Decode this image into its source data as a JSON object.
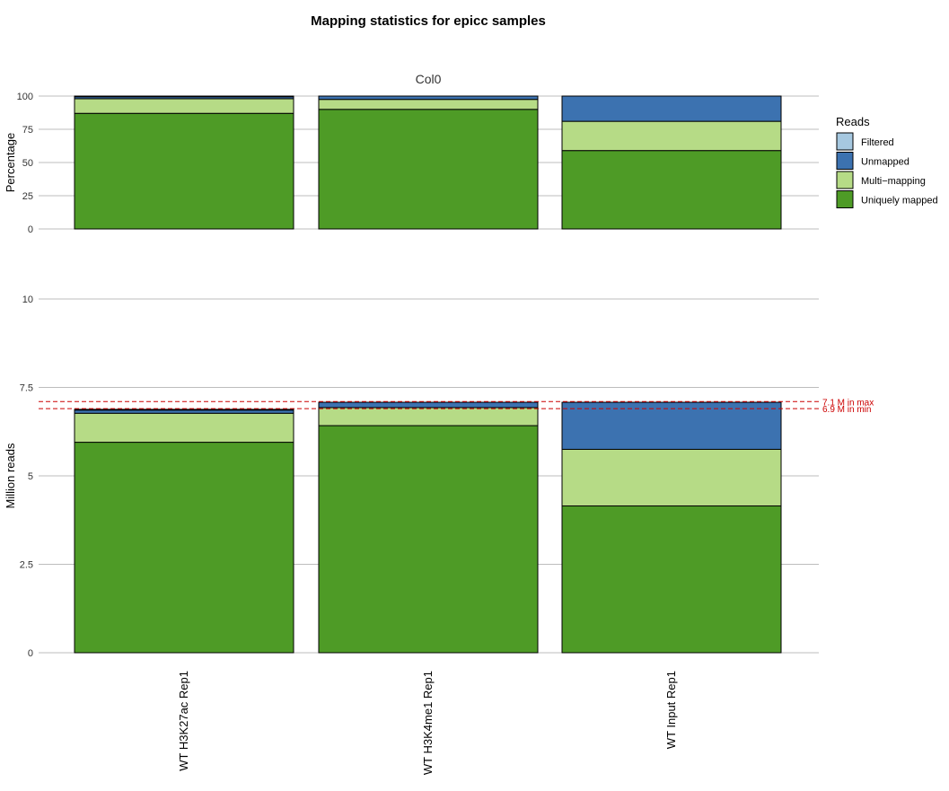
{
  "chart_data": {
    "type": "bar",
    "stacked": true,
    "title": "Mapping statistics for epicc samples",
    "facet": "Col0",
    "categories": [
      "WT H3K27ac Rep1",
      "WT H3K4me1 Rep1",
      "WT Input Rep1"
    ],
    "legend": {
      "title": "Reads",
      "placement": "right",
      "items": [
        {
          "label": "Filtered",
          "color": "#a6c8e0"
        },
        {
          "label": "Unmapped",
          "color": "#3c72b0"
        },
        {
          "label": "Multi−mapping",
          "color": "#b6db86"
        },
        {
          "label": "Uniquely mapped",
          "color": "#4e9b26"
        }
      ]
    },
    "panels": [
      {
        "id": "percentage",
        "ylabel": "Percentage",
        "ylim": [
          0,
          100
        ],
        "yticks": [
          "0",
          "25",
          "50",
          "75",
          "100"
        ],
        "ytick_values": [
          0,
          25,
          50,
          75,
          100
        ],
        "series": [
          {
            "name": "Uniquely mapped",
            "values": [
              87,
              90,
              59
            ]
          },
          {
            "name": "Multi−mapping",
            "values": [
              11,
              7.5,
              22
            ]
          },
          {
            "name": "Unmapped",
            "values": [
              1.5,
              2.5,
              19
            ]
          },
          {
            "name": "Filtered",
            "values": [
              0.5,
              0,
              0
            ]
          }
        ]
      },
      {
        "id": "million_reads",
        "ylabel": "Million reads",
        "ylim": [
          0,
          10
        ],
        "yticks": [
          "0",
          "2.5",
          "5",
          "7.5",
          "10"
        ],
        "ytick_values": [
          0,
          2.5,
          5,
          7.5,
          10
        ],
        "series": [
          {
            "name": "Uniquely mapped",
            "values": [
              5.95,
              6.42,
              4.15
            ]
          },
          {
            "name": "Multi−mapping",
            "values": [
              0.82,
              0.51,
              1.6
            ]
          },
          {
            "name": "Unmapped",
            "values": [
              0.09,
              0.15,
              1.33
            ]
          },
          {
            "name": "Filtered",
            "values": [
              0.02,
              0,
              0
            ]
          }
        ],
        "reference_lines": [
          {
            "value": 7.1,
            "label": "7.1 M in max",
            "color": "#cc0000"
          },
          {
            "value": 6.9,
            "label": "6.9 M in min",
            "color": "#cc0000"
          }
        ]
      }
    ]
  }
}
